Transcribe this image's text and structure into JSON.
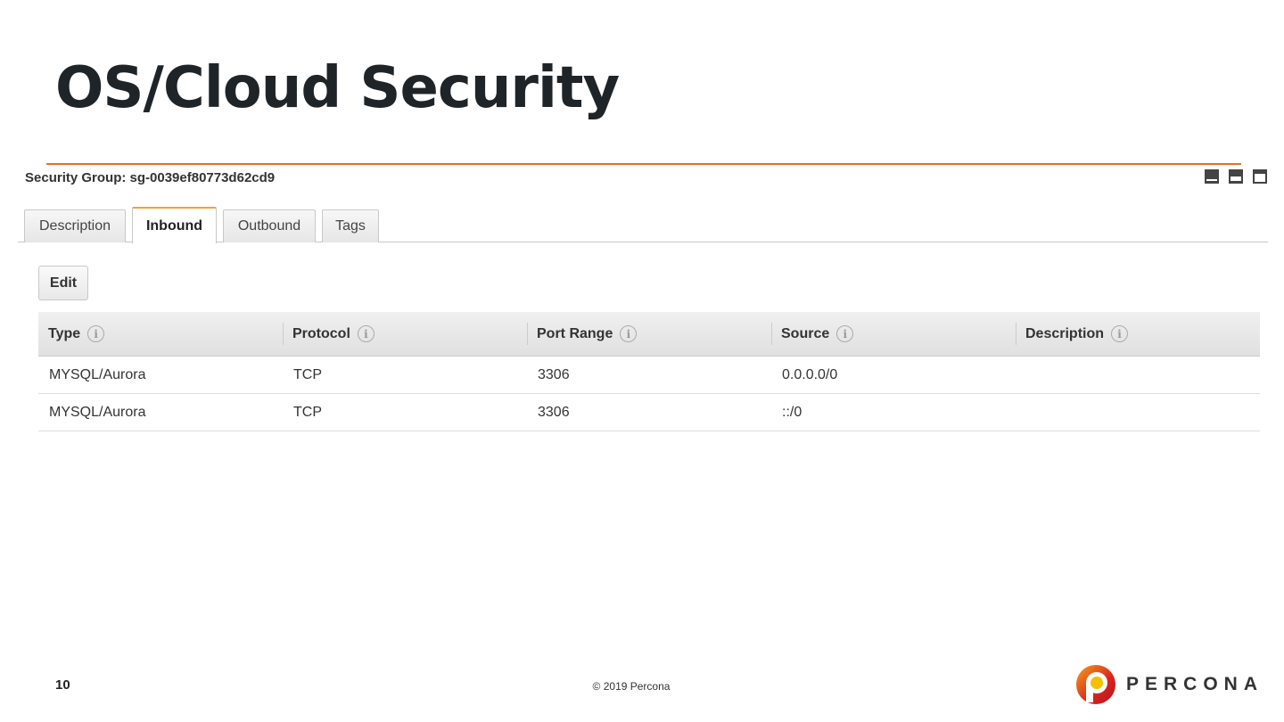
{
  "slide": {
    "title": "OS/Cloud Security",
    "page_number": "10",
    "copyright": "© 2019 Percona",
    "logo_text": "PERCONA",
    "accent_color": "#e8701f"
  },
  "panel": {
    "security_group_label": "Security Group: sg-0039ef80773d62cd9",
    "icons": [
      "panel-bottom-icon",
      "panel-split-icon",
      "panel-top-icon"
    ],
    "tabs": [
      {
        "label": "Description"
      },
      {
        "label": "Inbound",
        "active": true
      },
      {
        "label": "Outbound"
      },
      {
        "label": "Tags"
      }
    ],
    "edit_label": "Edit"
  },
  "table": {
    "columns": [
      "Type",
      "Protocol",
      "Port Range",
      "Source",
      "Description"
    ],
    "rows": [
      [
        "MYSQL/Aurora",
        "TCP",
        "3306",
        "0.0.0.0/0",
        ""
      ],
      [
        "MYSQL/Aurora",
        "TCP",
        "3306",
        "::/0",
        ""
      ]
    ]
  }
}
